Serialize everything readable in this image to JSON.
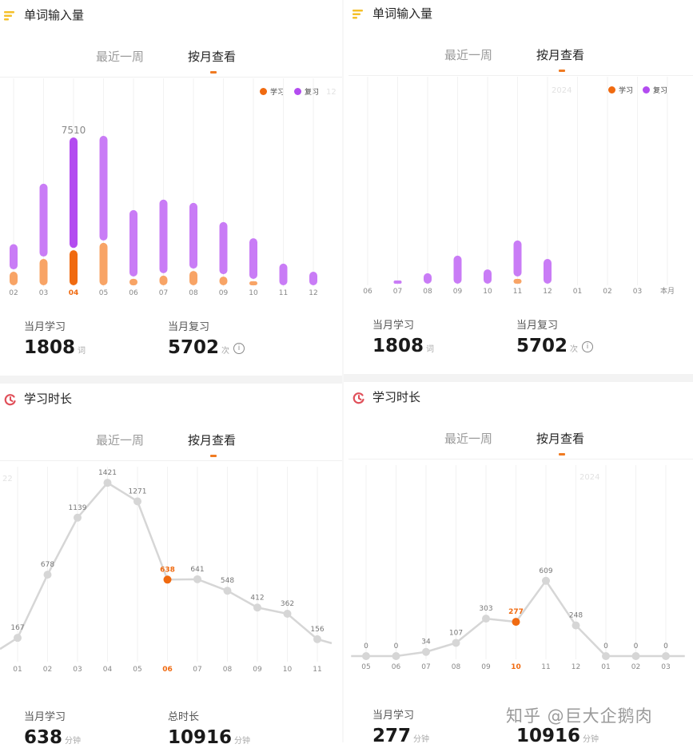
{
  "colors": {
    "learn": "#f8a466",
    "learn_selected": "#f06a10",
    "review": "#c97cf6",
    "review_selected": "#b34cf0",
    "line": "#d6d6d6",
    "highlight": "#f06a10",
    "header_icon_bars": "#f5c02a",
    "header_icon_clock": "#e0505a"
  },
  "panels": [
    {
      "header": {
        "title": "单词输入量",
        "icon": "bars-icon"
      },
      "tabs": [
        {
          "label": "最近一周"
        },
        {
          "label": "按月查看",
          "active": true
        }
      ],
      "legend": {
        "learn": "学习",
        "review": "复习"
      },
      "stats": [
        {
          "label": "当月学习",
          "value": "1808",
          "unit": "词"
        },
        {
          "label": "当月复习",
          "value": "5702",
          "unit": "次",
          "info_icon": "info-icon"
        }
      ]
    },
    {
      "header": {
        "title": "单词输入量",
        "icon": "bars-icon"
      },
      "tabs": [
        {
          "label": "最近一周"
        },
        {
          "label": "按月查看",
          "active": true
        }
      ],
      "legend": {
        "learn": "学习",
        "review": "复习"
      },
      "stats": [
        {
          "label": "当月学习",
          "value": "1808",
          "unit": "词"
        },
        {
          "label": "当月复习",
          "value": "5702",
          "unit": "次",
          "info_icon": "info-icon"
        }
      ]
    },
    {
      "header": {
        "title": "学习时长",
        "icon": "clock-icon"
      },
      "tabs": [
        {
          "label": "最近一周"
        },
        {
          "label": "按月查看",
          "active": true
        }
      ],
      "stats": [
        {
          "label": "当月学习",
          "value": "638",
          "unit": "分钟"
        },
        {
          "label": "总时长",
          "value": "10916",
          "unit": "分钟"
        }
      ]
    },
    {
      "header": {
        "title": "学习时长",
        "icon": "clock-icon"
      },
      "tabs": [
        {
          "label": "最近一周"
        },
        {
          "label": "按月查看",
          "active": true
        }
      ],
      "stats": [
        {
          "label": "当月学习",
          "value": "277",
          "unit": "分钟"
        },
        {
          "label": "",
          "value": "10916",
          "unit": "分钟"
        }
      ]
    }
  ],
  "watermark": "知乎 @巨大企鹅肉",
  "chart_data": [
    {
      "type": "bar",
      "stacked": true,
      "year_label": "12",
      "categories": [
        "02",
        "03",
        "04",
        "05",
        "06",
        "07",
        "08",
        "09",
        "10",
        "11",
        "12"
      ],
      "selected": "04",
      "series": [
        {
          "name": "学习",
          "values": [
            700,
            1360,
            1808,
            2190,
            330,
            500,
            740,
            450,
            100,
            0,
            0
          ]
        },
        {
          "name": "复习",
          "values": [
            1300,
            3760,
            5702,
            5400,
            3430,
            3800,
            3390,
            2690,
            2100,
            1120,
            700
          ]
        }
      ],
      "data_labels": [
        {
          "category": "04",
          "text": "7510"
        }
      ],
      "ylim": [
        0,
        7600
      ],
      "grid": "vertical",
      "legend": "top-right"
    },
    {
      "type": "bar",
      "stacked": true,
      "year_label": "2024",
      "categories": [
        "06",
        "07",
        "08",
        "09",
        "10",
        "11",
        "12",
        "01",
        "02",
        "03",
        "本月"
      ],
      "series": [
        {
          "name": "学习",
          "values": [
            0,
            0,
            0,
            0,
            0,
            250,
            0,
            0,
            0,
            0,
            0
          ]
        },
        {
          "name": "复习",
          "values": [
            0,
            160,
            540,
            1450,
            740,
            1860,
            1280,
            0,
            0,
            0,
            0
          ]
        }
      ],
      "ylim": [
        0,
        7600
      ],
      "grid": "vertical",
      "legend": "top-right"
    },
    {
      "type": "line",
      "year_label": "22",
      "categories": [
        "01",
        "02",
        "03",
        "04",
        "05",
        "06",
        "07",
        "08",
        "09",
        "10",
        "11"
      ],
      "selected": "06",
      "values": [
        167,
        678,
        1139,
        1421,
        1271,
        638,
        641,
        548,
        412,
        362,
        156
      ],
      "ylim": [
        0,
        1421
      ],
      "grid": "vertical"
    },
    {
      "type": "line",
      "year_label": "2024",
      "categories": [
        "05",
        "06",
        "07",
        "08",
        "09",
        "10",
        "11",
        "12",
        "01",
        "02",
        "03"
      ],
      "selected": "10",
      "values": [
        0,
        0,
        34,
        107,
        303,
        277,
        609,
        248,
        0,
        0,
        0
      ],
      "ylim": [
        0,
        1421
      ],
      "grid": "vertical"
    }
  ]
}
